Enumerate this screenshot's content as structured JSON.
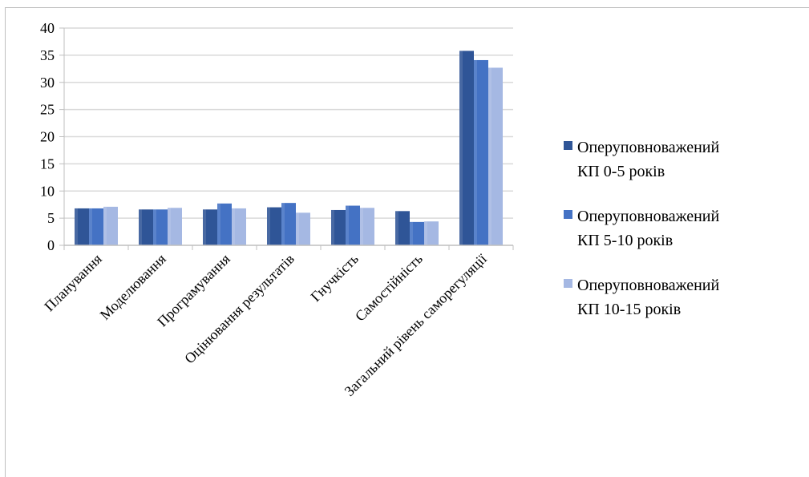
{
  "chart_data": {
    "type": "bar",
    "categories": [
      "Планування",
      "Моделювання",
      "Програмування",
      "Оцінювання результатів",
      "Гнучкість",
      "Самостійність",
      "Загальний рівень саморегуляції"
    ],
    "series": [
      {
        "name_lines": [
          "Оперуповноважений",
          "КП 0-5 років"
        ],
        "color": "#2f5597",
        "values": [
          6.8,
          6.6,
          6.6,
          7.0,
          6.5,
          6.3,
          35.8
        ]
      },
      {
        "name_lines": [
          "Оперуповноважений",
          "КП 5-10 років"
        ],
        "color": "#4472c4",
        "values": [
          6.8,
          6.6,
          7.7,
          7.8,
          7.3,
          4.3,
          34.1
        ]
      },
      {
        "name_lines": [
          "Оперуповноважений",
          "КП 10-15 років"
        ],
        "color": "#a5b8e3",
        "values": [
          7.1,
          6.9,
          6.8,
          6.0,
          6.9,
          4.4,
          32.7
        ]
      }
    ],
    "yticks": [
      "0",
      "5",
      "10",
      "15",
      "20",
      "25",
      "30",
      "35",
      "40"
    ],
    "ylim": [
      0,
      40
    ],
    "grid": true,
    "legend_position": "right"
  }
}
